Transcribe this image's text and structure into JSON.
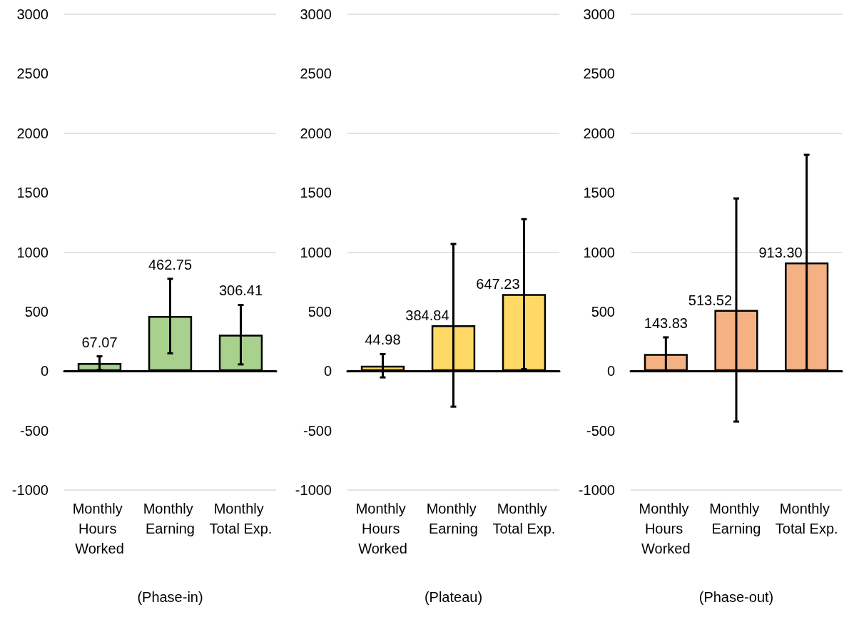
{
  "chart_data": [
    {
      "type": "bar",
      "xlabel": "(Phase-in)",
      "categories": [
        "Monthly Hours Worked",
        "Monthly Earning",
        "Monthly Total Exp."
      ],
      "values": [
        67.07,
        462.75,
        306.41
      ],
      "errors": [
        57,
        313,
        250
      ],
      "value_labels": [
        "67.07",
        "462.75",
        "306.41"
      ],
      "color": "#a9d18e",
      "ylim": [
        -1000,
        3000
      ],
      "yticks": [
        -1000,
        -500,
        0,
        500,
        1000,
        1500,
        2000,
        2500,
        3000
      ],
      "grid": "y"
    },
    {
      "type": "bar",
      "xlabel": "(Plateau)",
      "categories": [
        "Monthly Hours Worked",
        "Monthly Earning",
        "Monthly Total Exp."
      ],
      "values": [
        44.98,
        384.84,
        647.23
      ],
      "errors": [
        98,
        684,
        630
      ],
      "value_labels": [
        "44.98",
        "384.84",
        "647.23"
      ],
      "color": "#ffd966",
      "ylim": [
        -1000,
        3000
      ],
      "yticks": [
        -1000,
        -500,
        0,
        500,
        1000,
        1500,
        2000,
        2500,
        3000
      ],
      "grid": "y"
    },
    {
      "type": "bar",
      "xlabel": "(Phase-out)",
      "categories": [
        "Monthly Hours Worked",
        "Monthly Earning",
        "Monthly Total Exp."
      ],
      "values": [
        143.83,
        513.52,
        913.3
      ],
      "errors": [
        140,
        938,
        905
      ],
      "value_labels": [
        "143.83",
        "513.52",
        "913.30"
      ],
      "color": "#f4b183",
      "ylim": [
        -1000,
        3000
      ],
      "yticks": [
        -1000,
        -500,
        0,
        500,
        1000,
        1500,
        2000,
        2500,
        3000
      ],
      "grid": "y"
    }
  ]
}
